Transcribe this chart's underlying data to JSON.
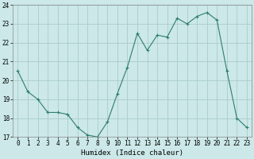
{
  "x": [
    0,
    1,
    2,
    3,
    4,
    5,
    6,
    7,
    8,
    9,
    10,
    11,
    12,
    13,
    14,
    15,
    16,
    17,
    18,
    19,
    20,
    21,
    22,
    23
  ],
  "y": [
    20.5,
    19.4,
    19.0,
    18.3,
    18.3,
    18.2,
    17.5,
    17.1,
    17.0,
    17.8,
    19.3,
    20.7,
    22.5,
    21.6,
    22.4,
    22.3,
    23.3,
    23.0,
    23.4,
    23.6,
    23.2,
    20.5,
    18.0,
    17.5
  ],
  "line_color": "#2e7d6e",
  "marker_color": "#2e7d6e",
  "bg_color": "#cce8e8",
  "grid_color": "#aacccc",
  "xlabel": "Humidex (Indice chaleur)",
  "ylim": [
    17,
    24
  ],
  "xlim_min": -0.5,
  "xlim_max": 23.5,
  "yticks": [
    17,
    18,
    19,
    20,
    21,
    22,
    23,
    24
  ],
  "xticks": [
    0,
    1,
    2,
    3,
    4,
    5,
    6,
    7,
    8,
    9,
    10,
    11,
    12,
    13,
    14,
    15,
    16,
    17,
    18,
    19,
    20,
    21,
    22,
    23
  ],
  "axis_fontsize": 6.5,
  "tick_fontsize": 5.5,
  "linewidth": 0.8,
  "markersize": 3.0,
  "markeredgewidth": 0.8
}
